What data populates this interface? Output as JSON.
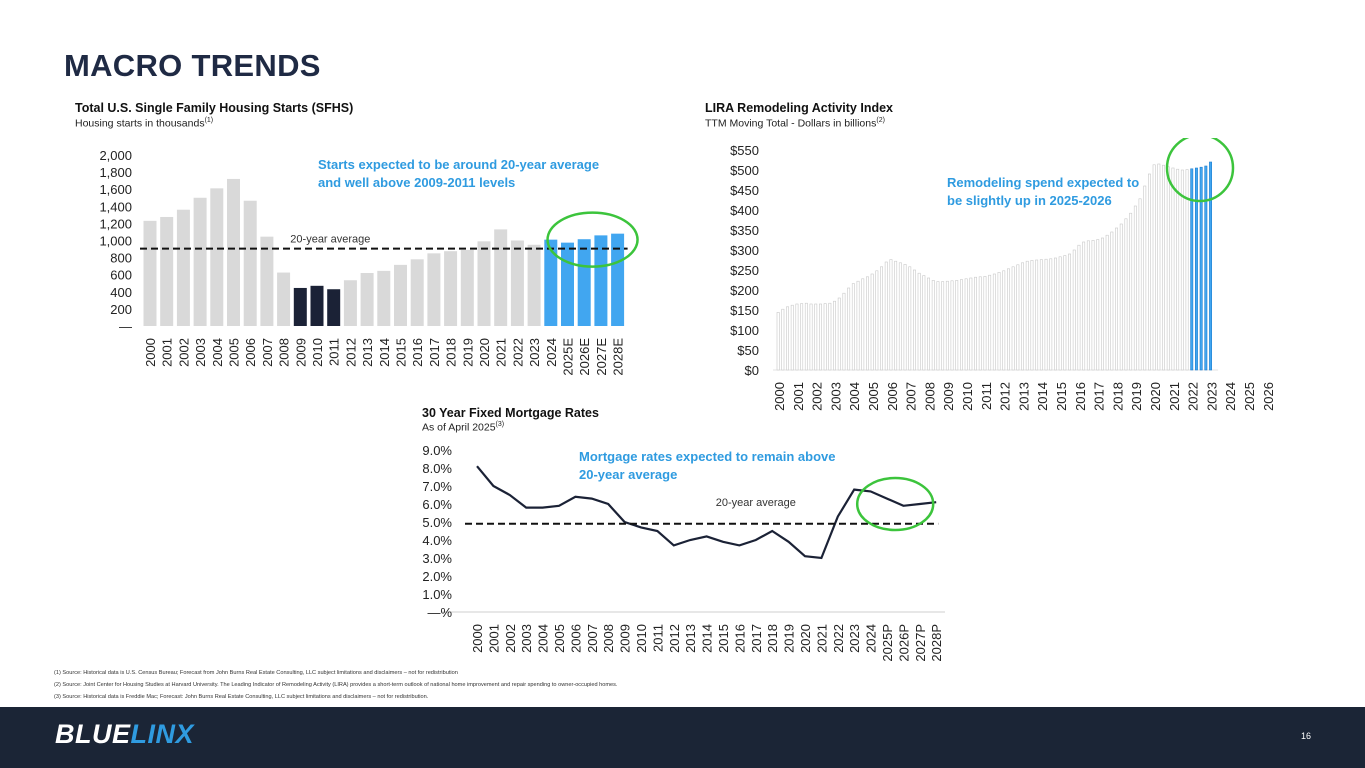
{
  "page": {
    "title": "MACRO TRENDS",
    "page_number": "16",
    "logo": {
      "part1": "BLUE",
      "part2": "LINX",
      "color1": "#ffffff",
      "color2": "#2f9be0"
    },
    "footnotes": [
      "(1) Source: Historical data is U.S. Census Bureau; Forecast from John Burns Real Estate Consulting, LLC subject limitations and disclaimers – not for redistribution",
      "(2) Source: Joint Center for Housing Studies at Harvard University. The Leading Indicator of Remodeling Activity (LIRA) provides a short-term outlook of national home improvement and repair spending to owner-occupied homes.",
      "(3) Source: Historical data is Freddie Mac; Forecast: John Burns Real Estate Consulting, LLC subject limitations and disclaimers – not for redistribution."
    ],
    "colors": {
      "title": "#1f2a44",
      "accent": "#2f9be0",
      "highlight_ring": "#3cc43c",
      "bar_gray": "#d9d9d9",
      "bar_dark": "#1b2236",
      "bar_forecast": "#41a6f0",
      "footer_bg": "#1b2536"
    }
  },
  "chart_data": [
    {
      "id": "sfhs",
      "type": "bar",
      "title": "Total U.S. Single Family Housing Starts (SFHS)",
      "subtitle": "Housing starts in thousands",
      "subtitle_note": "(1)",
      "categories": [
        "2000",
        "2001",
        "2002",
        "2003",
        "2004",
        "2005",
        "2006",
        "2007",
        "2008",
        "2009",
        "2010",
        "2011",
        "2012",
        "2013",
        "2014",
        "2015",
        "2016",
        "2017",
        "2018",
        "2019",
        "2020",
        "2021",
        "2022",
        "2023",
        "2024",
        "2025E",
        "2026E",
        "2027E",
        "2028E"
      ],
      "values": [
        1230,
        1275,
        1360,
        1500,
        1610,
        1720,
        1465,
        1045,
        625,
        445,
        470,
        430,
        535,
        620,
        645,
        715,
        780,
        850,
        875,
        890,
        990,
        1130,
        1000,
        950,
        1010,
        975,
        1015,
        1060,
        1080
      ],
      "bar_groups": [
        "historical",
        "historical",
        "historical",
        "historical",
        "historical",
        "historical",
        "historical",
        "historical",
        "historical",
        "downturn",
        "downturn",
        "downturn",
        "historical",
        "historical",
        "historical",
        "historical",
        "historical",
        "historical",
        "historical",
        "historical",
        "historical",
        "historical",
        "historical",
        "historical",
        "forecast",
        "forecast",
        "forecast",
        "forecast",
        "forecast"
      ],
      "ylim": [
        0,
        2000
      ],
      "yticks": [
        0,
        200,
        400,
        600,
        800,
        1000,
        1200,
        1400,
        1600,
        1800,
        2000
      ],
      "ytick_labels": [
        "—",
        "200",
        "400",
        "600",
        "800",
        "1,000",
        "1,200",
        "1,400",
        "1,600",
        "1,800",
        "2,000"
      ],
      "average": {
        "label": "20-year average",
        "value": 905
      },
      "callout": [
        "Starts expected to be around 20-year average",
        "and well above 2009-2011 levels"
      ],
      "highlight": "2025E-2028E"
    },
    {
      "id": "lira",
      "type": "bar",
      "title": "LIRA Remodeling Activity Index",
      "subtitle": "TTM Moving Total - Dollars in billions",
      "subtitle_note": "(2)",
      "year_labels": [
        "2000",
        "2001",
        "2002",
        "2003",
        "2004",
        "2005",
        "2006",
        "2007",
        "2008",
        "2009",
        "2010",
        "2011",
        "2012",
        "2013",
        "2014",
        "2015",
        "2016",
        "2017",
        "2018",
        "2019",
        "2020",
        "2021",
        "2022",
        "2023",
        "2024",
        "2025",
        "2026"
      ],
      "quarterly_values": [
        144,
        152,
        158,
        162,
        165,
        166,
        167,
        165,
        165,
        165,
        166,
        167,
        172,
        180,
        192,
        205,
        216,
        222,
        228,
        233,
        240,
        248,
        258,
        270,
        276,
        272,
        268,
        264,
        258,
        250,
        242,
        236,
        230,
        224,
        221,
        221,
        222,
        223,
        224,
        226,
        228,
        230,
        232,
        233,
        234,
        237,
        240,
        244,
        248,
        253,
        258,
        263,
        268,
        272,
        274,
        275,
        276,
        277,
        278,
        280,
        283,
        286,
        290,
        300,
        312,
        320,
        323,
        324,
        326,
        330,
        337,
        345,
        355,
        365,
        378,
        392,
        410,
        428,
        460,
        490,
        513,
        515,
        512,
        508,
        505,
        502,
        500,
        501,
        503,
        505,
        507,
        510,
        520
      ],
      "forecast_from_index": 88,
      "ylim": [
        0,
        550
      ],
      "yticks": [
        0,
        50,
        100,
        150,
        200,
        250,
        300,
        350,
        400,
        450,
        500,
        550
      ],
      "ytick_labels": [
        "$0",
        "$50",
        "$100",
        "$150",
        "$200",
        "$250",
        "$300",
        "$350",
        "$400",
        "$450",
        "$500",
        "$550"
      ],
      "callout": [
        "Remodeling spend expected to",
        "be slightly up in 2025-2026"
      ],
      "highlight": "2025-2026"
    },
    {
      "id": "mortgage",
      "type": "line",
      "title": "30 Year Fixed Mortgage Rates",
      "subtitle": "As of April 2025",
      "subtitle_note": "(3)",
      "categories": [
        "2000",
        "2001",
        "2002",
        "2003",
        "2004",
        "2005",
        "2006",
        "2007",
        "2008",
        "2009",
        "2010",
        "2011",
        "2012",
        "2013",
        "2014",
        "2015",
        "2016",
        "2017",
        "2018",
        "2019",
        "2020",
        "2021",
        "2022",
        "2023",
        "2024",
        "2025P",
        "2026P",
        "2027P",
        "2028P"
      ],
      "values": [
        8.1,
        7.0,
        6.5,
        5.8,
        5.8,
        5.9,
        6.4,
        6.3,
        6.0,
        5.0,
        4.7,
        4.5,
        3.7,
        4.0,
        4.2,
        3.9,
        3.7,
        4.0,
        4.5,
        3.9,
        3.1,
        3.0,
        5.3,
        6.8,
        6.7,
        6.3,
        5.9,
        6.0,
        6.1
      ],
      "ylim": [
        0,
        9
      ],
      "yticks": [
        0,
        1,
        2,
        3,
        4,
        5,
        6,
        7,
        8,
        9
      ],
      "ytick_labels": [
        "—%",
        "1.0%",
        "2.0%",
        "3.0%",
        "4.0%",
        "5.0%",
        "6.0%",
        "7.0%",
        "8.0%",
        "9.0%"
      ],
      "average": {
        "label": "20-year average",
        "value": 4.9
      },
      "callout": [
        "Mortgage rates expected to remain above",
        "20-year average"
      ],
      "highlight": "2024-2028P"
    }
  ]
}
